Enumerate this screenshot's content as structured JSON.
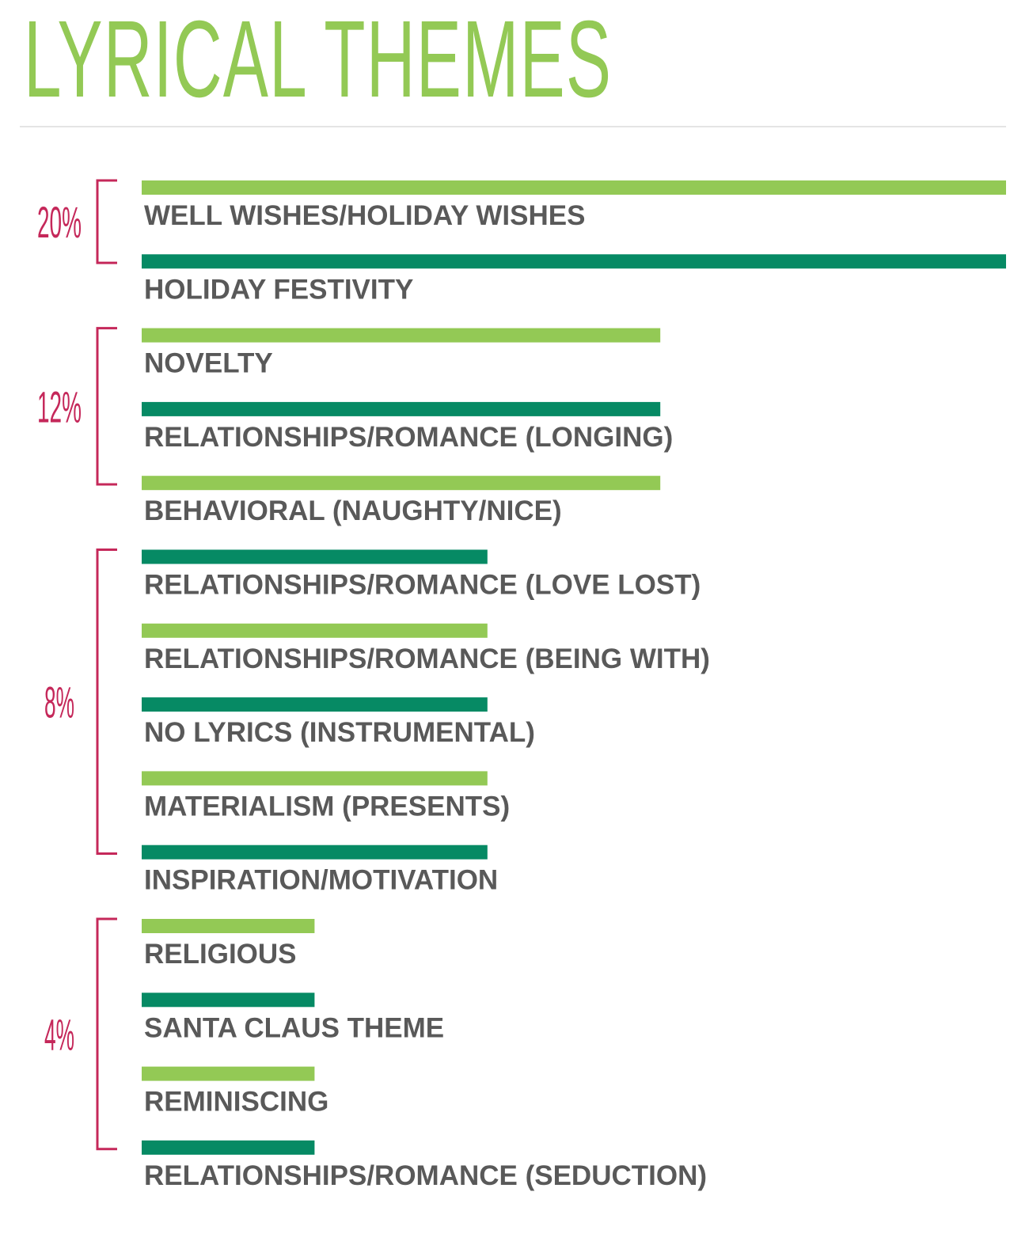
{
  "title": "LYRICAL THEMES",
  "colors": {
    "title": "#93c955",
    "light_bar": "#93c955",
    "dark_bar": "#068a64",
    "bracket": "#c5285a",
    "label": "#595959"
  },
  "chart_data": {
    "type": "bar",
    "orientation": "horizontal",
    "title": "LYRICAL THEMES",
    "unit": "%",
    "xlim": [
      0,
      20
    ],
    "categories": [
      "WELL WISHES/HOLIDAY WISHES",
      "HOLIDAY FESTIVITY",
      "NOVELTY",
      "RELATIONSHIPS/ROMANCE (LONGING)",
      "BEHAVIORAL (NAUGHTY/NICE)",
      "RELATIONSHIPS/ROMANCE (LOVE LOST)",
      "RELATIONSHIPS/ROMANCE (BEING WITH)",
      "NO LYRICS (INSTRUMENTAL)",
      "MATERIALISM (PRESENTS)",
      "INSPIRATION/MOTIVATION",
      "RELIGIOUS",
      "SANTA CLAUS THEME",
      "REMINISCING",
      "RELATIONSHIPS/ROMANCE (SEDUCTION)"
    ],
    "values": [
      20,
      20,
      12,
      12,
      12,
      8,
      8,
      8,
      8,
      8,
      4,
      4,
      4,
      4
    ],
    "bar_colors": [
      "light",
      "dark",
      "light",
      "dark",
      "light",
      "dark",
      "light",
      "dark",
      "light",
      "dark",
      "light",
      "dark",
      "light",
      "dark"
    ],
    "groups": [
      {
        "label": "20%",
        "value": 20,
        "first": 0,
        "last": 1
      },
      {
        "label": "12%",
        "value": 12,
        "first": 2,
        "last": 4
      },
      {
        "label": "8%",
        "value": 8,
        "first": 5,
        "last": 9
      },
      {
        "label": "4%",
        "value": 4,
        "first": 10,
        "last": 13
      }
    ]
  }
}
